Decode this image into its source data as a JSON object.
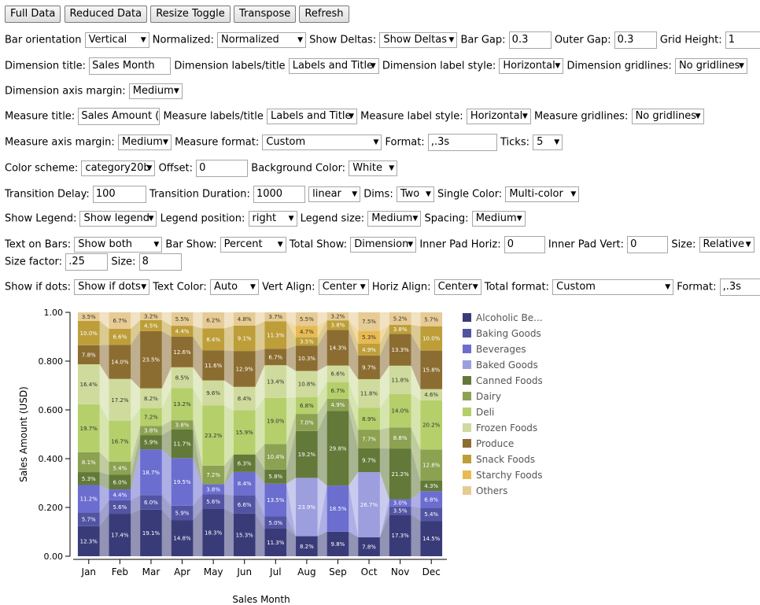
{
  "toolbar": {
    "buttons": [
      "Full Data",
      "Reduced Data",
      "Resize Toggle",
      "Transpose",
      "Refresh"
    ]
  },
  "controls": {
    "bar_orientation_label": "Bar orientation",
    "bar_orientation": "Vertical",
    "normalized_label": "Normalized:",
    "normalized": "Normalized",
    "show_deltas_label": "Show Deltas:",
    "show_deltas": "Show Deltas",
    "bar_gap_label": "Bar Gap:",
    "bar_gap": "0.3",
    "outer_gap_label": "Outer Gap:",
    "outer_gap": "0.3",
    "grid_height_label": "Grid Height:",
    "grid_height": "1",
    "dim_title_label": "Dimension title:",
    "dim_title": "Sales Month",
    "dim_labels_label": "Dimension labels/title",
    "dim_labels": "Labels and Title",
    "dim_label_style_label": "Dimension label style:",
    "dim_label_style": "Horizontal",
    "dim_gridlines_label": "Dimension gridlines:",
    "dim_gridlines": "No gridlines",
    "dim_axis_margin_label": "Dimension axis margin:",
    "dim_axis_margin": "Medium",
    "measure_title_label": "Measure title:",
    "measure_title": "Sales Amount (U",
    "measure_labels_label": "Measure labels/title",
    "measure_labels": "Labels and Title",
    "measure_label_style_label": "Measure label style:",
    "measure_label_style": "Horizontal",
    "measure_gridlines_label": "Measure gridlines:",
    "measure_gridlines": "No gridlines",
    "measure_axis_margin_label": "Measure axis margin:",
    "measure_axis_margin": "Medium",
    "measure_format_label": "Measure format:",
    "measure_format": "Custom",
    "format_label": "Format:",
    "format": ",.3s",
    "ticks_label": "Ticks:",
    "ticks": "5",
    "color_scheme_label": "Color scheme:",
    "color_scheme": "category20b",
    "offset_label": "Offset:",
    "offset": "0",
    "bg_color_label": "Background Color:",
    "bg_color": "White",
    "transition_delay_label": "Transition Delay:",
    "transition_delay": "100",
    "transition_duration_label": "Transition Duration:",
    "transition_duration": "1000",
    "easing": "linear",
    "dims_label": "Dims:",
    "dims": "Two",
    "single_color_label": "Single Color:",
    "single_color": "Multi-color",
    "show_legend_label": "Show Legend:",
    "show_legend": "Show legend",
    "legend_position_label": "Legend position:",
    "legend_position": "right",
    "legend_size_label": "Legend size:",
    "legend_size": "Medium",
    "spacing_label": "Spacing:",
    "spacing": "Medium",
    "text_on_bars_label": "Text on Bars:",
    "text_on_bars": "Show both",
    "bar_show_label": "Bar Show:",
    "bar_show": "Percent",
    "total_show_label": "Total Show:",
    "total_show": "Dimension",
    "inner_pad_horiz_label": "Inner Pad Horiz:",
    "inner_pad_horiz": "0",
    "inner_pad_vert_label": "Inner Pad Vert:",
    "inner_pad_vert": "0",
    "size_label": "Size:",
    "size_mode": "Relative",
    "size_factor_label": "Size factor:",
    "size_factor": ".25",
    "size2_label": "Size:",
    "size2": "8",
    "show_if_dots_label": "Show if dots:",
    "show_if_dots": "Show if dots",
    "text_color_label": "Text Color:",
    "text_color": "Auto",
    "vert_align_label": "Vert Align:",
    "vert_align": "Center",
    "horiz_align_label": "Horiz Align:",
    "horiz_align": "Center",
    "total_format_label": "Total format:",
    "total_format": "Custom",
    "total_format_value_label": "Format:",
    "total_format_value": ",.3s"
  },
  "chart_data": {
    "type": "bar",
    "stacked": true,
    "normalized": true,
    "xlabel": "Sales Month",
    "ylabel": "Sales Amount (USD)",
    "ylim": [
      0,
      1
    ],
    "yticks": [
      "0.00",
      "0.200",
      "0.400",
      "0.600",
      "0.800",
      "1.00"
    ],
    "legend_position": "right",
    "categories": [
      "Jan",
      "Feb",
      "Mar",
      "Apr",
      "May",
      "Jun",
      "Jul",
      "Aug",
      "Sep",
      "Oct",
      "Nov",
      "Dec"
    ],
    "series": [
      {
        "name": "Alcoholic Beverages",
        "legend_label": "Alcoholic Be...",
        "color": "#393b79",
        "values": [
          12.3,
          17.4,
          19.1,
          14.8,
          18.3,
          15.3,
          11.3,
          8.2,
          9.8,
          7.8,
          17.3,
          14.5
        ]
      },
      {
        "name": "Baking Goods",
        "legend_label": "Baking Goods",
        "color": "#5254a3",
        "values": [
          5.7,
          5.6,
          6.0,
          5.9,
          5.6,
          6.6,
          5.0,
          0,
          0,
          0,
          3.5,
          5.4
        ]
      },
      {
        "name": "Beverages",
        "legend_label": "Beverages",
        "color": "#6b6ecf",
        "values": [
          11.2,
          4.4,
          18.7,
          19.5,
          3.8,
          8.4,
          13.5,
          0,
          18.5,
          0,
          3.0,
          6.8
        ]
      },
      {
        "name": "Baked Goods",
        "legend_label": "Baked Goods",
        "color": "#9c9ede",
        "values": [
          0,
          0,
          0,
          0,
          0,
          0,
          0,
          23.9,
          0,
          26.7,
          0,
          0
        ]
      },
      {
        "name": "Canned Foods",
        "legend_label": "Canned Foods",
        "color": "#637939",
        "values": [
          5.3,
          6.0,
          5.9,
          11.7,
          0,
          6.3,
          5.8,
          19.2,
          29.8,
          9.7,
          21.2,
          4.3
        ]
      },
      {
        "name": "Dairy",
        "legend_label": "Dairy",
        "color": "#8ca252",
        "values": [
          8.1,
          5.4,
          3.8,
          3.8,
          7.2,
          0,
          10.4,
          7.0,
          4.9,
          7.7,
          8.8,
          12.8
        ]
      },
      {
        "name": "Deli",
        "legend_label": "Deli",
        "color": "#b5cf6b",
        "values": [
          19.7,
          16.7,
          7.2,
          13.2,
          23.2,
          15.9,
          19.0,
          6.8,
          6.7,
          8.9,
          14.0,
          20.2
        ]
      },
      {
        "name": "Frozen Foods",
        "legend_label": "Frozen Foods",
        "color": "#cedb9c",
        "values": [
          16.4,
          17.2,
          8.2,
          8.5,
          9.6,
          8.4,
          13.4,
          10.8,
          6.6,
          11.8,
          11.8,
          4.6
        ]
      },
      {
        "name": "Produce",
        "legend_label": "Produce",
        "color": "#8c6d31",
        "values": [
          7.8,
          14.0,
          23.5,
          12.6,
          11.6,
          12.9,
          6.7,
          10.3,
          14.3,
          9.7,
          13.3,
          15.8
        ]
      },
      {
        "name": "Snack Foods",
        "legend_label": "Snack Foods",
        "color": "#bd9e39",
        "values": [
          10.0,
          6.6,
          4.5,
          4.4,
          8.4,
          9.1,
          11.3,
          3.5,
          3.8,
          4.9,
          3.8,
          10.0
        ]
      },
      {
        "name": "Starchy Foods",
        "legend_label": "Starchy Foods",
        "color": "#e7ba52",
        "values": [
          0,
          0,
          0,
          0,
          0,
          0,
          0,
          4.7,
          0,
          5.3,
          0,
          0
        ]
      },
      {
        "name": "Others",
        "legend_label": "Others",
        "color": "#e7cb94",
        "values": [
          3.5,
          6.7,
          3.2,
          5.5,
          6.2,
          4.8,
          3.7,
          5.5,
          3.2,
          7.5,
          5.2,
          5.7
        ]
      }
    ]
  }
}
